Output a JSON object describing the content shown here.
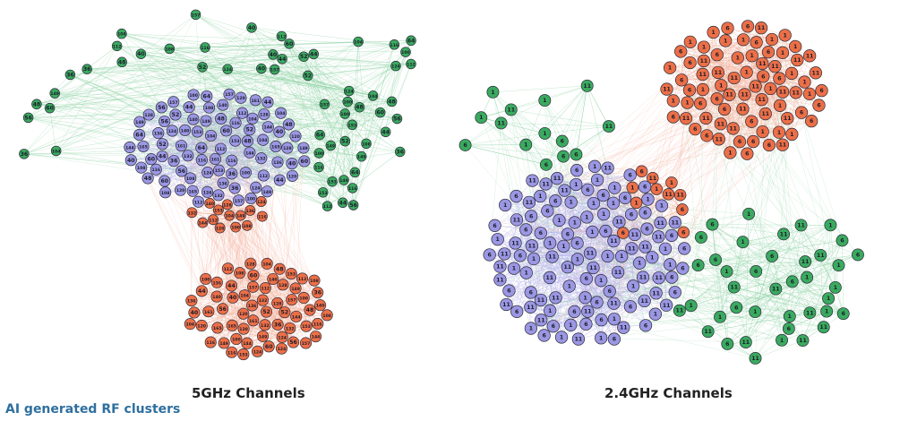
{
  "panels": {
    "left": {
      "title": "5GHz Channels",
      "purple_labels": [
        "149",
        "124",
        "108",
        "120",
        "44",
        "116",
        "60",
        "104",
        "48",
        "112",
        "52",
        "56",
        "100",
        "36",
        "40",
        "64",
        "132",
        "136",
        "153",
        "157",
        "161",
        "140",
        "144",
        "128",
        "165"
      ],
      "orange_labels": [
        "100",
        "116",
        "104",
        "120",
        "108",
        "112",
        "124",
        "128",
        "132",
        "136",
        "140",
        "144",
        "149",
        "153",
        "157",
        "161",
        "165",
        "60",
        "56",
        "52",
        "48",
        "44",
        "40",
        "36"
      ],
      "green_labels": [
        "149",
        "52",
        "40",
        "44",
        "100",
        "112",
        "36",
        "48",
        "116",
        "56",
        "124",
        "64",
        "108",
        "104",
        "60",
        "153",
        "157"
      ]
    },
    "right": {
      "title": "2.4GHz Channels",
      "labels": [
        "1",
        "6",
        "11"
      ]
    }
  },
  "caption": "AI generated RF clusters",
  "colors": {
    "purple": "#9b97e3",
    "orange": "#ec6f47",
    "green": "#3aaa5f",
    "edge_purple": "#b8b4ee",
    "edge_orange": "#f3b09a",
    "edge_green": "#8fd3a6",
    "node_stroke": "#2b2b3a",
    "caption": "#2f6f9f"
  }
}
